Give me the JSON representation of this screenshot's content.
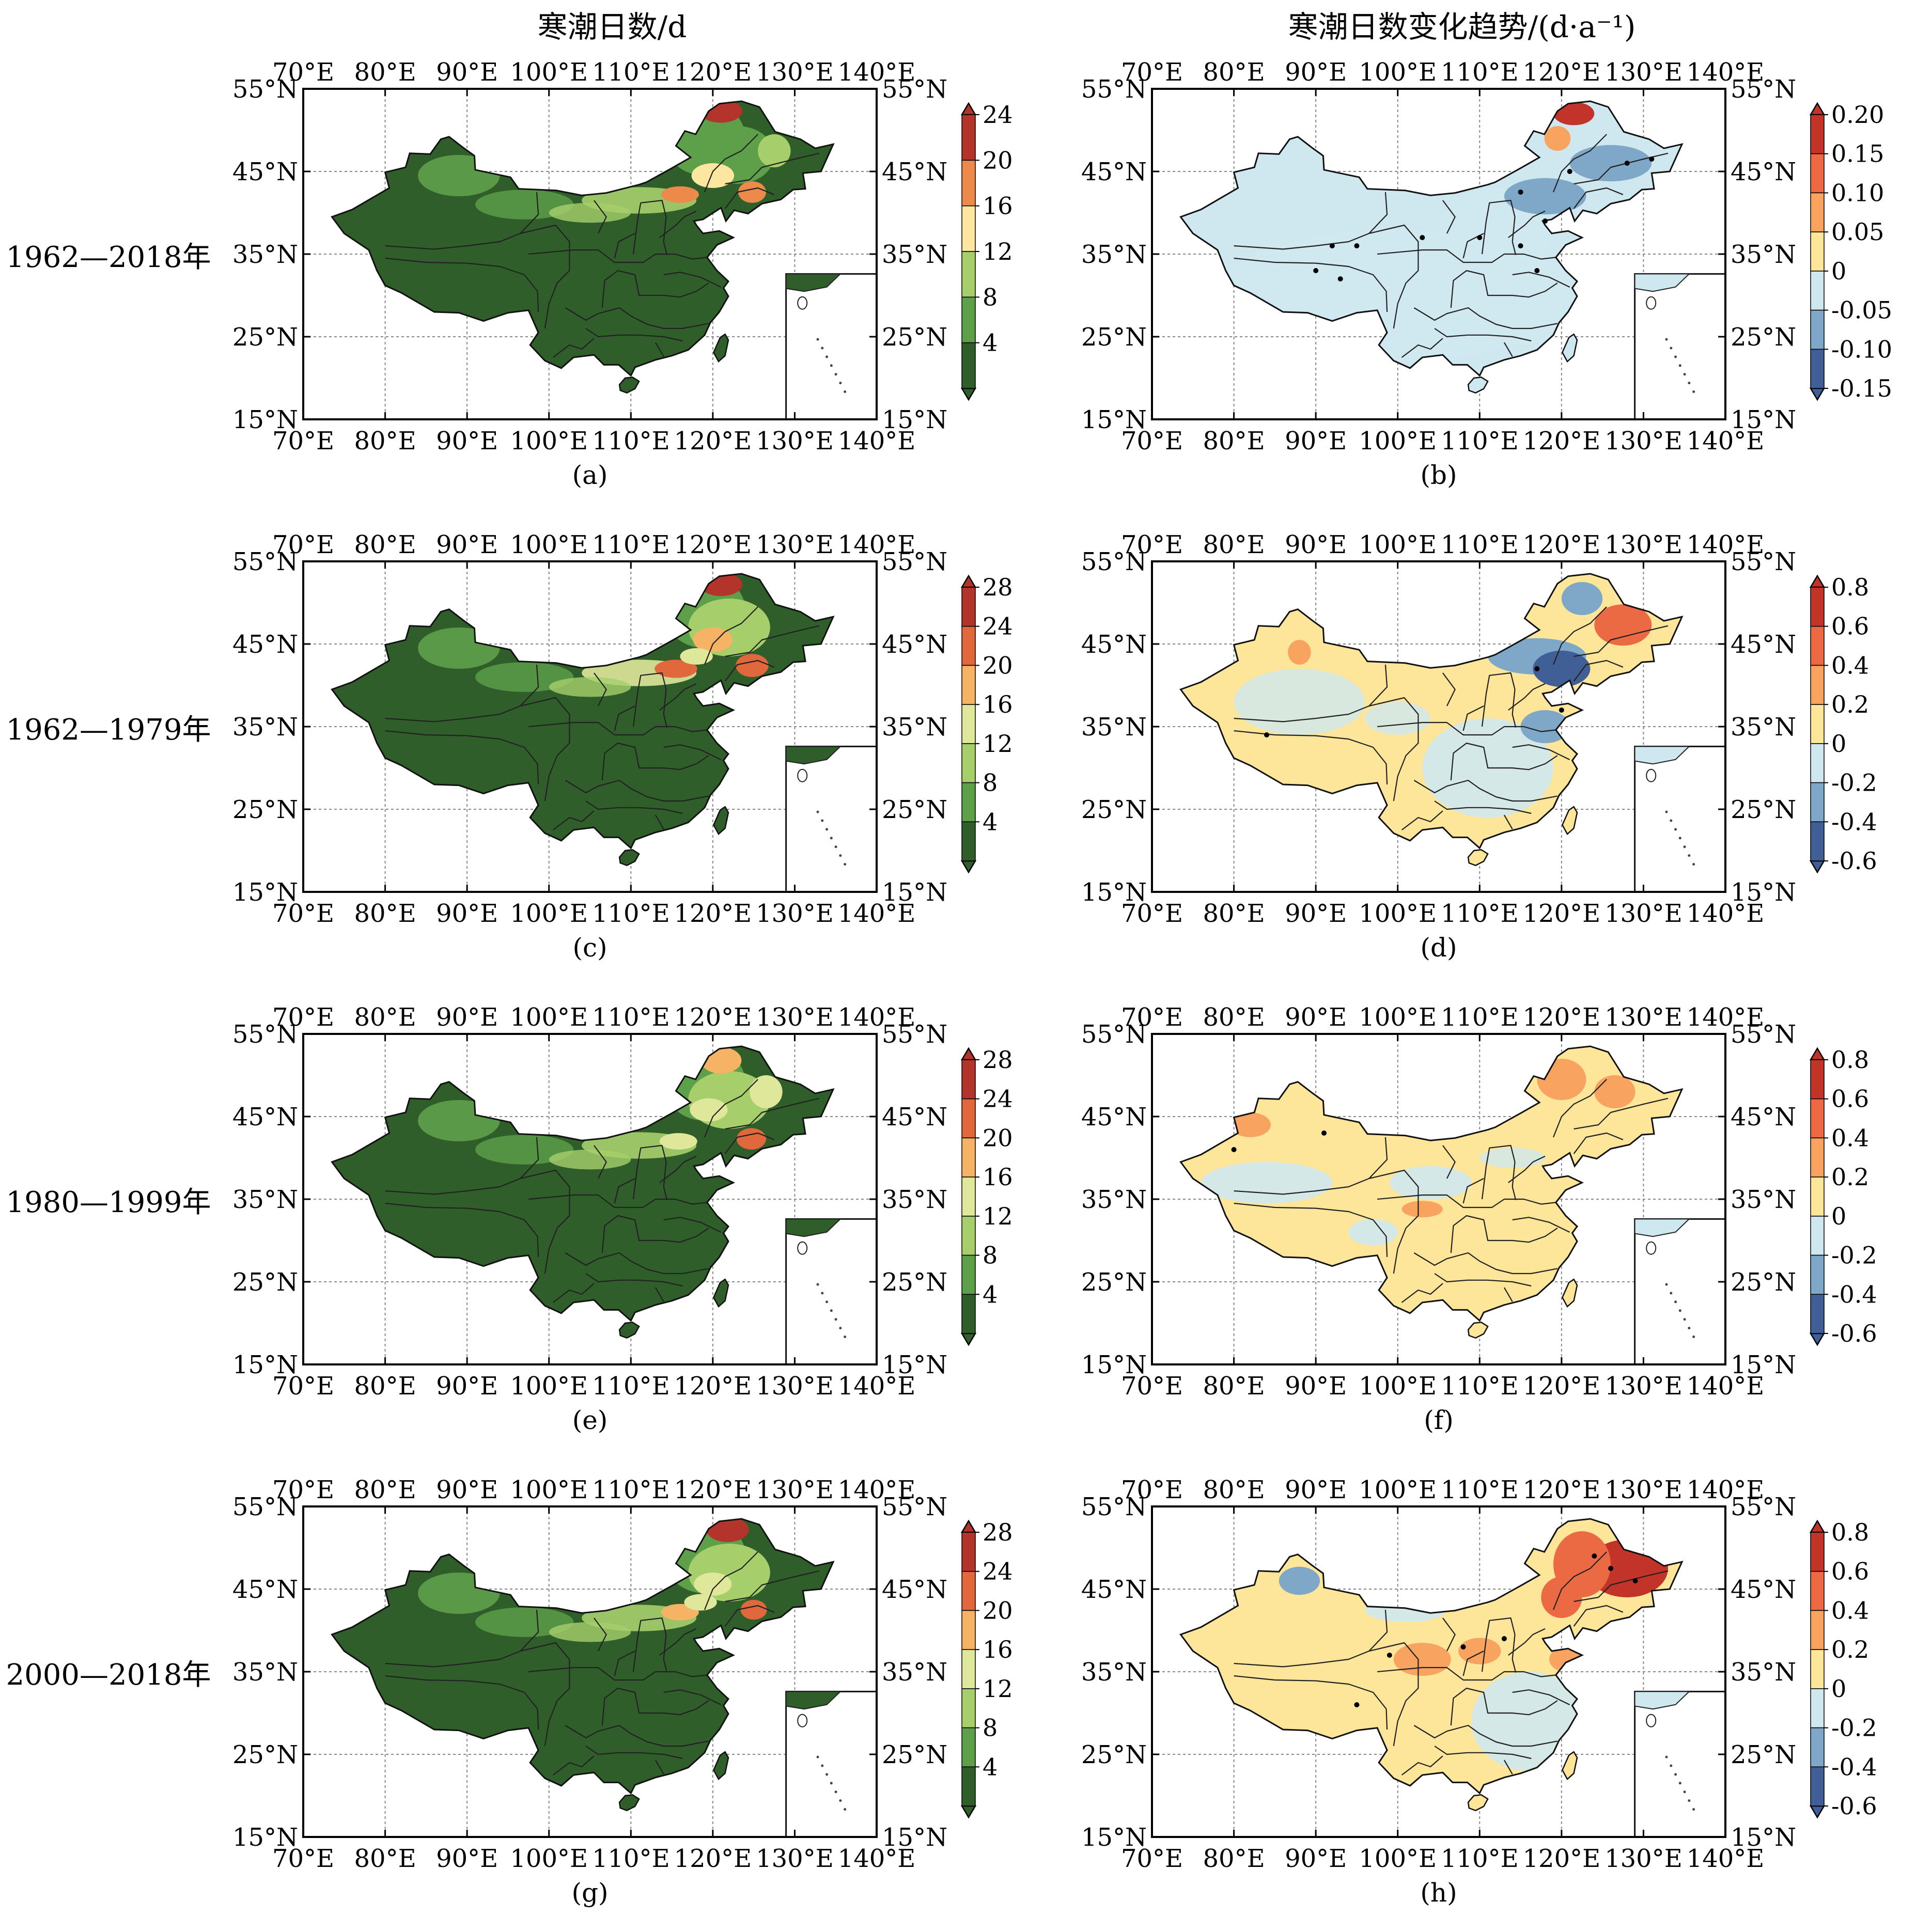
{
  "figure": {
    "col_titles": [
      "寒潮日数/d",
      "寒潮日数变化趋势/(d·a⁻¹)"
    ],
    "row_labels": [
      "1962—2018年",
      "1962—1979年",
      "1980—1999年",
      "2000—2018年"
    ],
    "lon_ticks": [
      "70°E",
      "80°E",
      "90°E",
      "100°E",
      "110°E",
      "120°E",
      "130°E",
      "140°E"
    ],
    "lat_ticks": [
      "55°N",
      "45°N",
      "35°N",
      "25°N",
      "15°N"
    ],
    "panels": [
      {
        "id": "a",
        "label": "(a)",
        "kind": "days",
        "cbar_labels": [
          "24",
          "20",
          "16",
          "12",
          "8",
          "4"
        ],
        "cbar_colors": [
          "#b2342a",
          "#ec8a4b",
          "#fde7a0",
          "#a6cf6b",
          "#5ea04a",
          "#2f5e2b"
        ]
      },
      {
        "id": "b",
        "label": "(b)",
        "kind": "trend",
        "cbar_labels": [
          "0.20",
          "0.15",
          "0.10",
          "0.05",
          "0",
          "-0.05",
          "-0.10",
          "-0.15"
        ],
        "cbar_colors": [
          "#c2332a",
          "#ec6a43",
          "#f8a360",
          "#fde59a",
          "#cfe8ef",
          "#7fa8c8",
          "#3f5f96"
        ]
      },
      {
        "id": "c",
        "label": "(c)",
        "kind": "days",
        "cbar_labels": [
          "28",
          "24",
          "20",
          "16",
          "12",
          "8",
          "4"
        ],
        "cbar_colors": [
          "#b2342a",
          "#e0683c",
          "#f6b366",
          "#dfe79a",
          "#a6cf6b",
          "#5ea04a",
          "#2f5e2b"
        ]
      },
      {
        "id": "d",
        "label": "(d)",
        "kind": "trend",
        "cbar_labels": [
          "0.8",
          "0.6",
          "0.4",
          "0.2",
          "0",
          "-0.2",
          "-0.4",
          "-0.6"
        ],
        "cbar_colors": [
          "#c2332a",
          "#ec6a43",
          "#f8a360",
          "#fde59a",
          "#cfe8ef",
          "#7fa8c8",
          "#3f5f96"
        ]
      },
      {
        "id": "e",
        "label": "(e)",
        "kind": "days",
        "cbar_labels": [
          "28",
          "24",
          "20",
          "16",
          "12",
          "8",
          "4"
        ],
        "cbar_colors": [
          "#b2342a",
          "#e0683c",
          "#f6b366",
          "#dfe79a",
          "#a6cf6b",
          "#5ea04a",
          "#2f5e2b"
        ]
      },
      {
        "id": "f",
        "label": "(f)",
        "kind": "trend",
        "cbar_labels": [
          "0.8",
          "0.6",
          "0.4",
          "0.2",
          "0",
          "-0.2",
          "-0.4",
          "-0.6"
        ],
        "cbar_colors": [
          "#c2332a",
          "#ec6a43",
          "#f8a360",
          "#fde59a",
          "#cfe8ef",
          "#7fa8c8",
          "#3f5f96"
        ]
      },
      {
        "id": "g",
        "label": "(g)",
        "kind": "days",
        "cbar_labels": [
          "28",
          "24",
          "20",
          "16",
          "12",
          "8",
          "4"
        ],
        "cbar_colors": [
          "#b2342a",
          "#e0683c",
          "#f6b366",
          "#dfe79a",
          "#a6cf6b",
          "#5ea04a",
          "#2f5e2b"
        ]
      },
      {
        "id": "h",
        "label": "(h)",
        "kind": "trend",
        "cbar_labels": [
          "0.8",
          "0.6",
          "0.4",
          "0.2",
          "0",
          "-0.2",
          "-0.4",
          "-0.6"
        ],
        "cbar_colors": [
          "#c2332a",
          "#ec6a43",
          "#f8a360",
          "#fde59a",
          "#cfe8ef",
          "#7fa8c8",
          "#3f5f96"
        ]
      }
    ]
  },
  "map_extent": {
    "lon_min": 70,
    "lon_max": 140,
    "lat_min": 15,
    "lat_max": 55
  }
}
